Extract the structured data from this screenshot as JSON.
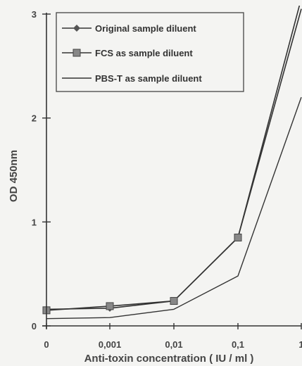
{
  "chart_data": {
    "type": "line",
    "title": "",
    "xlabel": "Anti-toxin concentration ( IU / ml )",
    "ylabel": "OD 450nm",
    "categories": [
      "0",
      "0,001",
      "0,01",
      "0,1",
      "1"
    ],
    "ylim": [
      0,
      3
    ],
    "yticks": [
      "0",
      "1",
      "2",
      "3"
    ],
    "grid": false,
    "legend_position": "top-left",
    "series": [
      {
        "name": "Original sample diluent",
        "marker": "diamond",
        "values": [
          0.16,
          0.17,
          0.24,
          0.85,
          3.05
        ]
      },
      {
        "name": "FCS as sample diluent",
        "marker": "square",
        "values": [
          0.15,
          0.19,
          0.24,
          0.85,
          3.15
        ]
      },
      {
        "name": "PBS-T as sample diluent",
        "marker": "none",
        "values": [
          0.07,
          0.08,
          0.16,
          0.48,
          2.2
        ]
      }
    ]
  }
}
